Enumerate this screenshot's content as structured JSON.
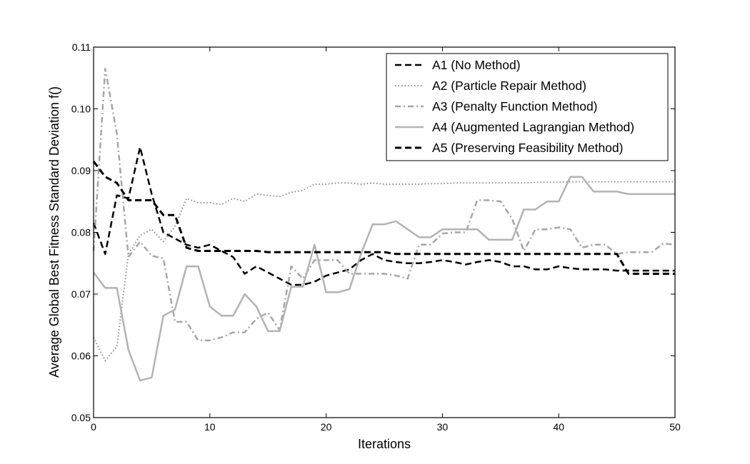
{
  "chart_data": {
    "type": "line",
    "title": "",
    "xlabel": "Iterations",
    "ylabel": "Average Global Best Fitness Standard Deviation f()",
    "xlim": [
      0,
      50
    ],
    "ylim": [
      0.05,
      0.11
    ],
    "xticks": [
      0,
      10,
      20,
      30,
      40,
      50
    ],
    "xtick_labels": [
      "0",
      "10",
      "20",
      "30",
      "40",
      "50"
    ],
    "yticks": [
      0.05,
      0.06,
      0.07,
      0.08,
      0.09,
      0.1,
      0.11
    ],
    "ytick_labels": [
      "0.05",
      "0.06",
      "0.07",
      "0.08",
      "0.09",
      "0.10",
      "0.11"
    ],
    "grid": false,
    "legend_position": "top-right",
    "series": [
      {
        "name": "A1 (No Method)",
        "color": "#000000",
        "style": "dashed",
        "x": [
          0,
          1,
          2,
          3,
          4,
          5,
          6,
          7,
          8,
          9,
          10,
          11,
          12,
          13,
          14,
          15,
          16,
          17,
          18,
          19,
          20,
          21,
          22,
          23,
          24,
          25,
          26,
          27,
          28,
          29,
          30,
          31,
          32,
          33,
          34,
          35,
          36,
          37,
          38,
          39,
          40,
          41,
          42,
          43,
          44,
          45,
          46,
          47,
          48,
          49,
          50
        ],
        "y": [
          0.0815,
          0.0765,
          0.086,
          0.0855,
          0.0938,
          0.0862,
          0.08,
          0.079,
          0.078,
          0.0775,
          0.078,
          0.077,
          0.076,
          0.0733,
          0.0745,
          0.0735,
          0.0725,
          0.0715,
          0.0715,
          0.072,
          0.073,
          0.0735,
          0.074,
          0.0755,
          0.0765,
          0.0755,
          0.0752,
          0.075,
          0.075,
          0.0752,
          0.0755,
          0.0752,
          0.0748,
          0.0752,
          0.0755,
          0.0752,
          0.0745,
          0.0745,
          0.074,
          0.074,
          0.0745,
          0.0742,
          0.074,
          0.074,
          0.074,
          0.0738,
          0.0738,
          0.0738,
          0.0738,
          0.0738,
          0.0738
        ]
      },
      {
        "name": "A2 (Particle Repair Method)",
        "color": "#8c8c8c",
        "style": "dotted",
        "x": [
          0,
          1,
          2,
          3,
          4,
          5,
          6,
          7,
          8,
          9,
          10,
          11,
          12,
          13,
          14,
          15,
          16,
          17,
          18,
          19,
          20,
          21,
          22,
          23,
          24,
          25,
          26,
          27,
          28,
          29,
          30,
          31,
          32,
          33,
          34,
          35,
          36,
          37,
          38,
          39,
          40,
          41,
          42,
          43,
          44,
          45,
          46,
          47,
          48,
          49,
          50
        ],
        "y": [
          0.063,
          0.0592,
          0.0615,
          0.0765,
          0.0795,
          0.0805,
          0.0785,
          0.081,
          0.0855,
          0.0848,
          0.0848,
          0.0845,
          0.0855,
          0.085,
          0.0862,
          0.086,
          0.0858,
          0.0865,
          0.0868,
          0.0878,
          0.0878,
          0.088,
          0.088,
          0.0878,
          0.088,
          0.0878,
          0.0878,
          0.0878,
          0.0878,
          0.0879,
          0.0879,
          0.088,
          0.088,
          0.088,
          0.088,
          0.088,
          0.088,
          0.088,
          0.0881,
          0.0881,
          0.0881,
          0.0882,
          0.0882,
          0.0882,
          0.0882,
          0.0882,
          0.0882,
          0.0882,
          0.0882,
          0.0882,
          0.0882
        ]
      },
      {
        "name": "A3 (Penalty Function Method)",
        "color": "#a6a6a6",
        "style": "dashdot",
        "x": [
          0,
          1,
          2,
          3,
          4,
          5,
          6,
          7,
          8,
          9,
          10,
          11,
          12,
          13,
          14,
          15,
          16,
          17,
          18,
          19,
          20,
          21,
          22,
          23,
          24,
          25,
          26,
          27,
          28,
          29,
          30,
          31,
          32,
          33,
          34,
          35,
          36,
          37,
          38,
          39,
          40,
          41,
          42,
          43,
          44,
          45,
          46,
          47,
          48,
          49,
          50
        ],
        "y": [
          0.077,
          0.1065,
          0.096,
          0.076,
          0.0785,
          0.0762,
          0.0758,
          0.0655,
          0.0655,
          0.0625,
          0.0625,
          0.063,
          0.0638,
          0.0638,
          0.066,
          0.067,
          0.0642,
          0.0745,
          0.0725,
          0.0755,
          0.0755,
          0.0755,
          0.0733,
          0.0733,
          0.0733,
          0.0733,
          0.073,
          0.0725,
          0.078,
          0.078,
          0.0798,
          0.08,
          0.08,
          0.0852,
          0.0852,
          0.085,
          0.0822,
          0.077,
          0.0805,
          0.0805,
          0.0808,
          0.0805,
          0.0775,
          0.078,
          0.078,
          0.0765,
          0.0768,
          0.0768,
          0.0768,
          0.0782,
          0.078
        ]
      },
      {
        "name": "A4 (Augmented Lagrangian Method)",
        "color": "#b3b3b3",
        "style": "solid",
        "x": [
          0,
          1,
          2,
          3,
          4,
          5,
          6,
          7,
          8,
          9,
          10,
          11,
          12,
          13,
          14,
          15,
          16,
          17,
          18,
          19,
          20,
          21,
          22,
          23,
          24,
          25,
          26,
          27,
          28,
          29,
          30,
          31,
          32,
          33,
          34,
          35,
          36,
          37,
          38,
          39,
          40,
          41,
          42,
          43,
          44,
          45,
          46,
          47,
          48,
          49,
          50
        ],
        "y": [
          0.0735,
          0.071,
          0.071,
          0.061,
          0.056,
          0.0565,
          0.0665,
          0.0675,
          0.0745,
          0.0745,
          0.068,
          0.0665,
          0.0665,
          0.07,
          0.068,
          0.064,
          0.064,
          0.0712,
          0.0712,
          0.078,
          0.0703,
          0.0703,
          0.0708,
          0.0765,
          0.0813,
          0.0813,
          0.0818,
          0.0805,
          0.0792,
          0.0792,
          0.0805,
          0.0805,
          0.0805,
          0.0805,
          0.0788,
          0.0788,
          0.0788,
          0.0837,
          0.0837,
          0.085,
          0.085,
          0.089,
          0.089,
          0.0866,
          0.0866,
          0.0866,
          0.0862,
          0.0862,
          0.0862,
          0.0862,
          0.0862
        ]
      },
      {
        "name": "A5 (Preserving Feasibility Method)",
        "color": "#000000",
        "style": "dashed-bold",
        "x": [
          0,
          1,
          2,
          3,
          4,
          5,
          6,
          7,
          8,
          9,
          10,
          11,
          12,
          13,
          14,
          15,
          16,
          17,
          18,
          19,
          20,
          21,
          22,
          23,
          24,
          25,
          26,
          27,
          28,
          29,
          30,
          31,
          32,
          33,
          34,
          35,
          36,
          37,
          38,
          39,
          40,
          41,
          42,
          43,
          44,
          45,
          46,
          47,
          48,
          49,
          50
        ],
        "y": [
          0.0915,
          0.089,
          0.088,
          0.0852,
          0.0852,
          0.0852,
          0.0828,
          0.0828,
          0.0775,
          0.077,
          0.077,
          0.077,
          0.077,
          0.077,
          0.077,
          0.0768,
          0.0768,
          0.0768,
          0.0768,
          0.0768,
          0.0768,
          0.0768,
          0.0768,
          0.0768,
          0.0768,
          0.0768,
          0.0765,
          0.0765,
          0.0765,
          0.0765,
          0.0765,
          0.0765,
          0.0765,
          0.0765,
          0.0765,
          0.0765,
          0.0765,
          0.0765,
          0.0765,
          0.0765,
          0.0765,
          0.0765,
          0.0765,
          0.0765,
          0.0765,
          0.0765,
          0.0733,
          0.0733,
          0.0733,
          0.0733,
          0.0733
        ]
      }
    ]
  }
}
